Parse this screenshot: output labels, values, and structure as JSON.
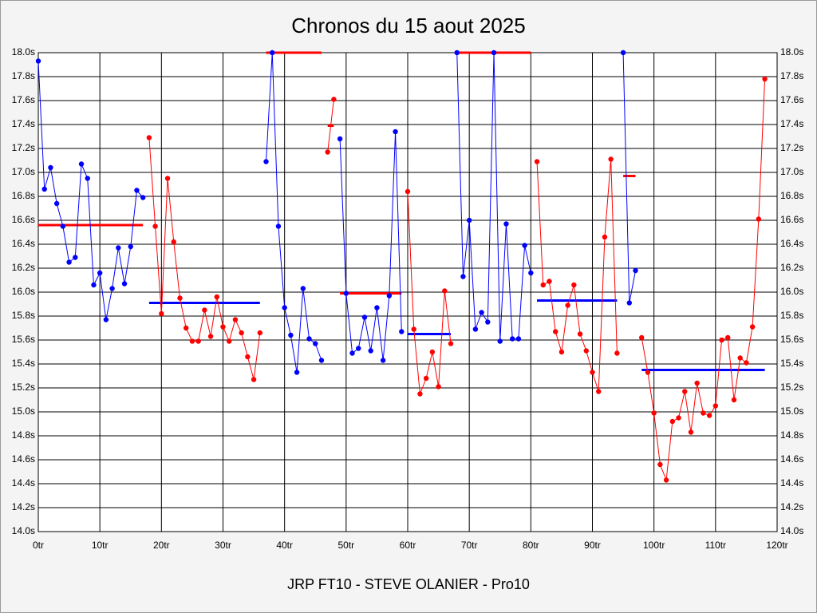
{
  "chart_data": {
    "type": "line",
    "title": "Chronos du 15 aout 2025",
    "xlabel": "JRP FT10 - STEVE OLANIER - Pro10",
    "xlim": [
      0,
      120
    ],
    "ylim": [
      14,
      18
    ],
    "grid": true,
    "xticks": [
      {
        "value": 0,
        "label": "0tr"
      },
      {
        "value": 10,
        "label": "10tr"
      },
      {
        "value": 20,
        "label": "20tr"
      },
      {
        "value": 30,
        "label": "30tr"
      },
      {
        "value": 40,
        "label": "40tr"
      },
      {
        "value": 50,
        "label": "50tr"
      },
      {
        "value": 60,
        "label": "60tr"
      },
      {
        "value": 70,
        "label": "70tr"
      },
      {
        "value": 80,
        "label": "80tr"
      },
      {
        "value": 90,
        "label": "90tr"
      },
      {
        "value": 100,
        "label": "100tr"
      },
      {
        "value": 110,
        "label": "110tr"
      },
      {
        "value": 120,
        "label": "120tr"
      }
    ],
    "yticks": [
      {
        "value": 14.0,
        "label": "14.0s"
      },
      {
        "value": 14.2,
        "label": "14.2s"
      },
      {
        "value": 14.4,
        "label": "14.4s"
      },
      {
        "value": 14.6,
        "label": "14.6s"
      },
      {
        "value": 14.8,
        "label": "14.8s"
      },
      {
        "value": 15.0,
        "label": "15.0s"
      },
      {
        "value": 15.2,
        "label": "15.2s"
      },
      {
        "value": 15.4,
        "label": "15.4s"
      },
      {
        "value": 15.6,
        "label": "15.6s"
      },
      {
        "value": 15.8,
        "label": "15.8s"
      },
      {
        "value": 16.0,
        "label": "16.0s"
      },
      {
        "value": 16.2,
        "label": "16.2s"
      },
      {
        "value": 16.4,
        "label": "16.4s"
      },
      {
        "value": 16.6,
        "label": "16.6s"
      },
      {
        "value": 16.8,
        "label": "16.8s"
      },
      {
        "value": 17.0,
        "label": "17.0s"
      },
      {
        "value": 17.2,
        "label": "17.2s"
      },
      {
        "value": 17.4,
        "label": "17.4s"
      },
      {
        "value": 17.6,
        "label": "17.6s"
      },
      {
        "value": 17.8,
        "label": "17.8s"
      },
      {
        "value": 18.0,
        "label": "18.0s"
      }
    ],
    "series": [
      {
        "color": "#0000ff",
        "x": [
          0,
          1,
          2,
          3,
          4,
          5,
          6,
          7,
          8,
          9,
          10,
          11,
          12,
          13,
          14,
          15,
          16,
          17
        ],
        "values": [
          17.93,
          16.86,
          17.04,
          16.74,
          16.55,
          16.25,
          16.29,
          17.07,
          16.95,
          16.06,
          16.16,
          15.77,
          16.03,
          16.37,
          16.07,
          16.38,
          16.85,
          16.79
        ]
      },
      {
        "color": "#ff0000",
        "x": [
          18,
          19,
          20,
          21,
          22,
          23,
          24,
          25,
          26,
          27,
          28,
          29,
          30,
          31,
          32,
          33,
          34,
          35,
          36
        ],
        "values": [
          17.29,
          16.55,
          15.82,
          16.95,
          16.42,
          15.95,
          15.7,
          15.59,
          15.59,
          15.85,
          15.63,
          15.96,
          15.71,
          15.59,
          15.77,
          15.66,
          15.46,
          15.27,
          15.66
        ]
      },
      {
        "color": "#0000ff",
        "x": [
          37,
          38,
          39,
          40,
          41,
          42,
          43,
          44,
          45,
          46
        ],
        "values": [
          17.09,
          18.0,
          16.55,
          15.87,
          15.64,
          15.33,
          16.03,
          15.61,
          15.57,
          15.43
        ]
      },
      {
        "color": "#ff0000",
        "x": [
          47,
          48
        ],
        "values": [
          17.17,
          17.61
        ]
      },
      {
        "color": "#0000ff",
        "x": [
          49,
          50,
          51,
          52,
          53,
          54,
          55,
          56,
          57,
          58,
          59
        ],
        "values": [
          17.28,
          15.99,
          15.49,
          15.53,
          15.79,
          15.51,
          15.87,
          15.43,
          15.97,
          17.34,
          15.67
        ]
      },
      {
        "color": "#ff0000",
        "x": [
          60,
          61,
          62,
          63,
          64,
          65,
          66,
          67
        ],
        "values": [
          16.84,
          15.69,
          15.15,
          15.28,
          15.5,
          15.21,
          16.01,
          15.57
        ]
      },
      {
        "color": "#0000ff",
        "x": [
          68,
          69,
          70,
          71,
          72,
          73,
          74,
          75,
          76,
          77,
          78,
          79,
          80
        ],
        "values": [
          18.0,
          16.13,
          16.6,
          15.69,
          15.83,
          15.75,
          18.0,
          15.59,
          16.57,
          15.61,
          15.61,
          16.39,
          16.16
        ]
      },
      {
        "color": "#ff0000",
        "x": [
          81,
          82,
          83,
          84,
          85,
          86,
          87,
          88,
          89,
          90,
          91,
          92,
          93,
          94
        ],
        "values": [
          17.09,
          16.06,
          16.09,
          15.67,
          15.5,
          15.89,
          16.06,
          15.65,
          15.51,
          15.33,
          15.17,
          16.46,
          17.11,
          15.49
        ]
      },
      {
        "color": "#0000ff",
        "x": [
          95,
          96,
          97
        ],
        "values": [
          18.0,
          15.91,
          16.18
        ]
      },
      {
        "color": "#ff0000",
        "x": [
          98,
          99,
          100,
          101,
          102,
          103,
          104,
          105,
          106,
          107,
          108,
          109,
          110,
          111,
          112,
          113,
          114,
          115,
          116,
          117,
          118
        ],
        "values": [
          15.62,
          15.33,
          14.99,
          14.56,
          14.43,
          14.92,
          14.95,
          15.17,
          14.83,
          15.24,
          14.99,
          14.97,
          15.05,
          15.6,
          15.62,
          15.1,
          15.45,
          15.41,
          15.71,
          16.61,
          17.78
        ]
      }
    ],
    "averages": [
      {
        "color": "#ff0000",
        "value": 16.56,
        "x": [
          0,
          17
        ]
      },
      {
        "color": "#0000ff",
        "value": 15.91,
        "x": [
          18,
          36
        ]
      },
      {
        "color": "#ff0000",
        "value": 18.0,
        "x": [
          37,
          46
        ]
      },
      {
        "color": "#ff0000",
        "value": 17.39,
        "x": [
          47,
          48
        ]
      },
      {
        "color": "#ff0000",
        "value": 15.99,
        "x": [
          49,
          59
        ]
      },
      {
        "color": "#0000ff",
        "value": 15.65,
        "x": [
          60,
          67
        ]
      },
      {
        "color": "#ff0000",
        "value": 18.0,
        "x": [
          68,
          80
        ]
      },
      {
        "color": "#0000ff",
        "value": 15.93,
        "x": [
          81,
          94
        ]
      },
      {
        "color": "#ff0000",
        "value": 16.97,
        "x": [
          95,
          97
        ]
      },
      {
        "color": "#0000ff",
        "value": 15.35,
        "x": [
          98,
          118
        ]
      }
    ]
  }
}
